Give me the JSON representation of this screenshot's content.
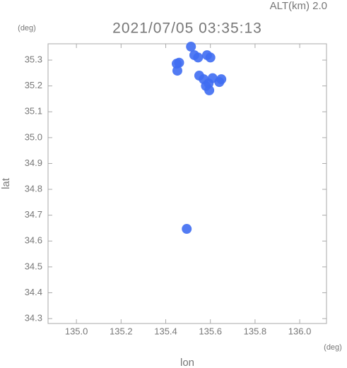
{
  "chart_data": {
    "type": "scatter",
    "title": "2021/07/05 03:35:13",
    "subtitle": "ALT(km) 2.0",
    "x_unit": "(deg)",
    "y_unit": "(deg)",
    "x_label": "lon",
    "y_label": "lat",
    "x": [
      135.449,
      135.452,
      135.46,
      135.528,
      135.545,
      135.585,
      135.6,
      135.513,
      135.55,
      135.57,
      135.592,
      135.58,
      135.61,
      135.595,
      135.649,
      135.64,
      135.494
    ],
    "values": [
      35.286,
      35.259,
      35.29,
      35.319,
      35.31,
      35.319,
      35.31,
      35.352,
      35.24,
      35.226,
      35.21,
      35.2,
      35.23,
      35.183,
      35.226,
      35.215,
      34.647
    ],
    "color": "#3f6df2",
    "xlim": [
      134.873,
      136.12
    ],
    "ylim": [
      34.281,
      35.363
    ],
    "xticks": [
      {
        "value": 135,
        "label": "135.0"
      },
      135.2,
      135.4,
      135.6,
      135.8,
      {
        "value": 136,
        "label": "136.0"
      }
    ],
    "yticks": [
      34.3,
      34.4,
      34.5,
      34.6,
      34.7,
      34.8,
      34.9,
      {
        "value": 35,
        "label": "35.0"
      },
      35.1,
      35.2,
      35.3
    ]
  }
}
